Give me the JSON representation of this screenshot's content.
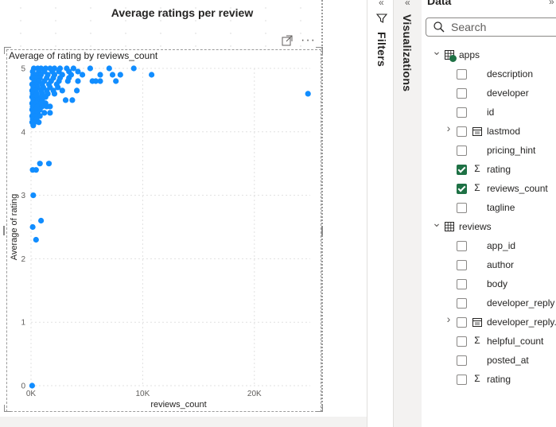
{
  "report": {
    "visual_title": "Average ratings per review"
  },
  "chart_data": {
    "type": "scatter",
    "title": "Average of rating by reviews_count",
    "xlabel": "reviews_count",
    "ylabel": "Average of rating",
    "xlim": [
      0,
      25000
    ],
    "ylim": [
      0,
      5
    ],
    "x_ticks": [
      "0K",
      "10K",
      "20K"
    ],
    "y_ticks": [
      "0",
      "1",
      "2",
      "3",
      "4",
      "5"
    ],
    "grid": true,
    "points": [
      [
        250,
        5.0
      ],
      [
        600,
        5.0
      ],
      [
        900,
        5.0
      ],
      [
        1300,
        5.0
      ],
      [
        1700,
        5.0
      ],
      [
        2100,
        5.0
      ],
      [
        2600,
        5.0
      ],
      [
        3200,
        5.0
      ],
      [
        3800,
        5.0
      ],
      [
        5300,
        5.0
      ],
      [
        7000,
        5.0
      ],
      [
        9200,
        5.0
      ],
      [
        150,
        4.95
      ],
      [
        700,
        4.95
      ],
      [
        1200,
        4.95
      ],
      [
        1900,
        4.95
      ],
      [
        2500,
        4.95
      ],
      [
        3400,
        4.95
      ],
      [
        4200,
        4.95
      ],
      [
        200,
        4.9
      ],
      [
        500,
        4.9
      ],
      [
        900,
        4.9
      ],
      [
        1500,
        4.9
      ],
      [
        2100,
        4.9
      ],
      [
        2800,
        4.9
      ],
      [
        3600,
        4.9
      ],
      [
        4600,
        4.9
      ],
      [
        6200,
        4.9
      ],
      [
        7300,
        4.9
      ],
      [
        8000,
        4.9
      ],
      [
        10800,
        4.9
      ],
      [
        100,
        4.85
      ],
      [
        400,
        4.85
      ],
      [
        800,
        4.85
      ],
      [
        1400,
        4.85
      ],
      [
        2000,
        4.85
      ],
      [
        2600,
        4.85
      ],
      [
        3400,
        4.85
      ],
      [
        300,
        4.8
      ],
      [
        700,
        4.8
      ],
      [
        1200,
        4.8
      ],
      [
        1800,
        4.8
      ],
      [
        2500,
        4.8
      ],
      [
        3300,
        4.8
      ],
      [
        4200,
        4.8
      ],
      [
        5500,
        4.8
      ],
      [
        5800,
        4.8
      ],
      [
        6200,
        4.8
      ],
      [
        7600,
        4.8
      ],
      [
        100,
        4.75
      ],
      [
        500,
        4.75
      ],
      [
        1000,
        4.75
      ],
      [
        1600,
        4.75
      ],
      [
        2300,
        4.75
      ],
      [
        200,
        4.7
      ],
      [
        600,
        4.7
      ],
      [
        1100,
        4.7
      ],
      [
        1700,
        4.7
      ],
      [
        2400,
        4.7
      ],
      [
        100,
        4.65
      ],
      [
        400,
        4.65
      ],
      [
        900,
        4.65
      ],
      [
        1400,
        4.65
      ],
      [
        2000,
        4.65
      ],
      [
        2800,
        4.65
      ],
      [
        4100,
        4.65
      ],
      [
        24800,
        4.6
      ],
      [
        150,
        4.6
      ],
      [
        500,
        4.6
      ],
      [
        1000,
        4.6
      ],
      [
        1500,
        4.6
      ],
      [
        2100,
        4.6
      ],
      [
        100,
        4.55
      ],
      [
        450,
        4.55
      ],
      [
        900,
        4.55
      ],
      [
        1300,
        4.55
      ],
      [
        200,
        4.5
      ],
      [
        600,
        4.5
      ],
      [
        1000,
        4.5
      ],
      [
        3100,
        4.5
      ],
      [
        3700,
        4.5
      ],
      [
        100,
        4.45
      ],
      [
        500,
        4.45
      ],
      [
        900,
        4.45
      ],
      [
        1300,
        4.45
      ],
      [
        150,
        4.4
      ],
      [
        550,
        4.4
      ],
      [
        1000,
        4.4
      ],
      [
        1400,
        4.4
      ],
      [
        1700,
        4.4
      ],
      [
        100,
        4.35
      ],
      [
        450,
        4.35
      ],
      [
        800,
        4.35
      ],
      [
        200,
        4.3
      ],
      [
        600,
        4.3
      ],
      [
        1200,
        4.3
      ],
      [
        1700,
        4.3
      ],
      [
        100,
        4.25
      ],
      [
        400,
        4.25
      ],
      [
        800,
        4.25
      ],
      [
        150,
        4.2
      ],
      [
        500,
        4.2
      ],
      [
        100,
        4.15
      ],
      [
        300,
        4.15
      ],
      [
        700,
        4.15
      ],
      [
        200,
        4.1
      ],
      [
        800,
        3.5
      ],
      [
        1600,
        3.5
      ],
      [
        150,
        3.4
      ],
      [
        450,
        3.4
      ],
      [
        200,
        3.0
      ],
      [
        900,
        2.6
      ],
      [
        150,
        2.5
      ],
      [
        450,
        2.3
      ],
      [
        100,
        0.0
      ]
    ]
  },
  "filters": {
    "label": "Filters"
  },
  "visualizations": {
    "label": "Visualizations"
  },
  "data_pane": {
    "title": "Data",
    "search": {
      "placeholder": "Search"
    },
    "tables": [
      {
        "name": "apps",
        "expanded": true,
        "fields": [
          {
            "name": "description",
            "checked": false,
            "type": ""
          },
          {
            "name": "developer",
            "checked": false,
            "type": ""
          },
          {
            "name": "id",
            "checked": false,
            "type": ""
          },
          {
            "name": "lastmod",
            "checked": false,
            "type": "calendar",
            "expandable": true
          },
          {
            "name": "pricing_hint",
            "checked": false,
            "type": ""
          },
          {
            "name": "rating",
            "checked": true,
            "type": "sum"
          },
          {
            "name": "reviews_count",
            "checked": true,
            "type": "sum"
          },
          {
            "name": "tagline",
            "checked": false,
            "type": ""
          }
        ]
      },
      {
        "name": "reviews",
        "expanded": true,
        "fields": [
          {
            "name": "app_id",
            "checked": false,
            "type": ""
          },
          {
            "name": "author",
            "checked": false,
            "type": ""
          },
          {
            "name": "body",
            "checked": false,
            "type": ""
          },
          {
            "name": "developer_reply",
            "checked": false,
            "type": ""
          },
          {
            "name": "developer_reply.",
            "checked": false,
            "type": "calendar",
            "expandable": true
          },
          {
            "name": "helpful_count",
            "checked": false,
            "type": "sum"
          },
          {
            "name": "posted_at",
            "checked": false,
            "type": ""
          },
          {
            "name": "rating",
            "checked": false,
            "type": "sum"
          }
        ]
      }
    ]
  },
  "colors": {
    "point": "#118dff",
    "checked": "#1e7145",
    "selected_badge": "#1e7145"
  }
}
